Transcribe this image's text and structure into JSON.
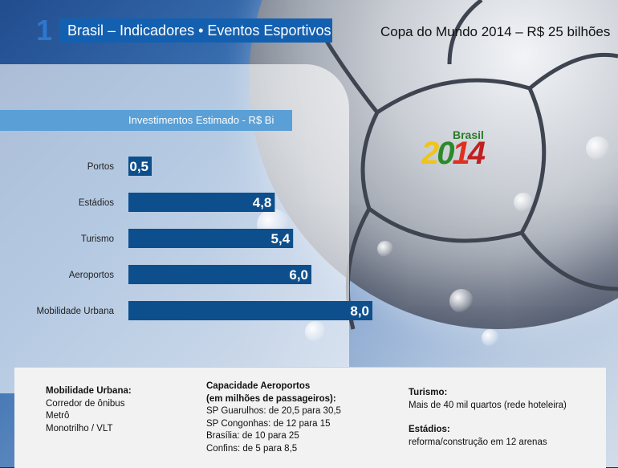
{
  "header": {
    "section_number": "1",
    "title": "Brasil – Indicadores • Eventos Esportivos",
    "headline": "Copa do Mundo 2014 – R$ 25 bilhões"
  },
  "logo": {
    "word": "Brasil",
    "year": "2014"
  },
  "chart_data": {
    "type": "bar",
    "orientation": "horizontal",
    "title": "Investimentos Estimado - R$ Bi",
    "categories": [
      "Portos",
      "Estádios",
      "Turismo",
      "Aeroportos",
      "Mobilidade Urbana"
    ],
    "values": [
      0.5,
      4.8,
      5.4,
      6.0,
      8.0
    ],
    "value_labels": [
      "0,5",
      "4,8",
      "5,4",
      "6,0",
      "8,0"
    ],
    "bar_color": "#0d4f8c",
    "grid": false,
    "legend": "none"
  },
  "notes": {
    "mobilidade": {
      "heading": "Mobilidade Urbana:",
      "lines": [
        "Corredor de ônibus",
        "Metrô",
        "Monotrilho / VLT"
      ]
    },
    "aeroportos": {
      "heading1": "Capacidade Aeroportos",
      "heading2": "(em milhões de passageiros):",
      "lines": [
        "SP Guarulhos: de 20,5 para 30,5",
        "SP Congonhas: de 12  para 15",
        "Brasília: de 10  para 25",
        "Confins: de 5  para 8,5"
      ]
    },
    "turismo": {
      "heading": "Turismo:",
      "line": "Mais de 40 mil quartos (rede hoteleira)"
    },
    "estadios": {
      "heading": "Estádios:",
      "line": "reforma/construção em 12 arenas"
    }
  }
}
